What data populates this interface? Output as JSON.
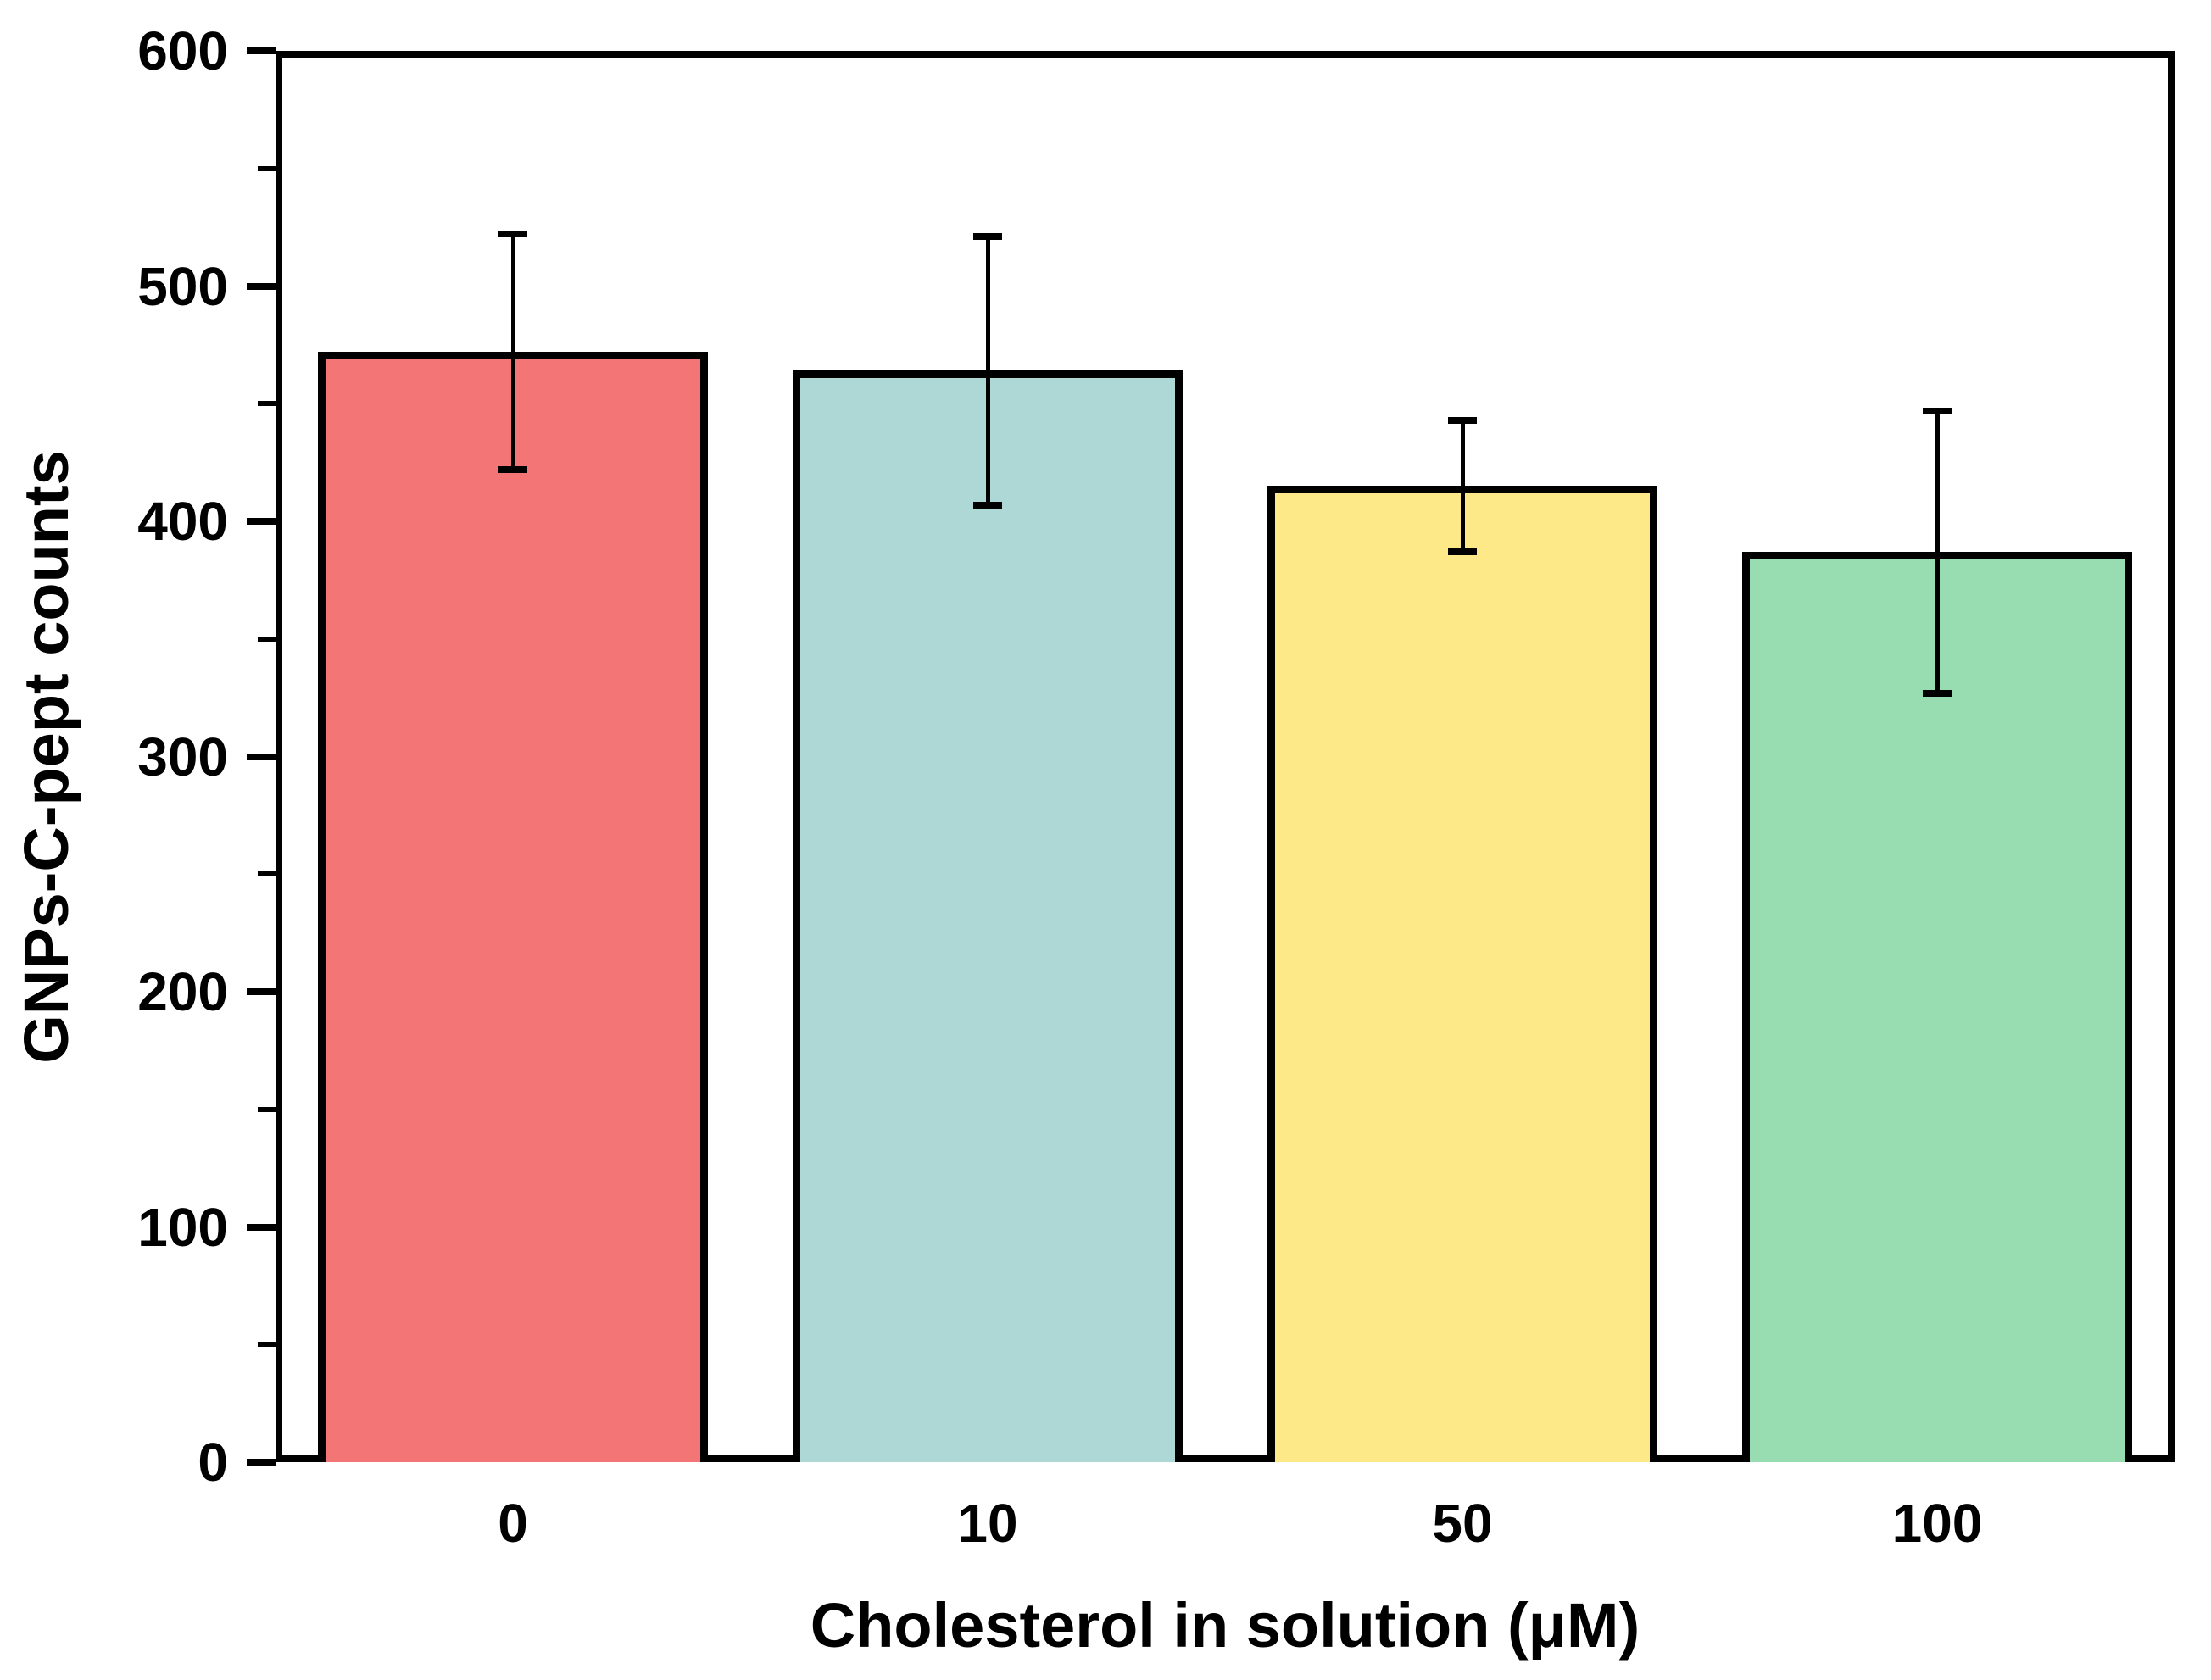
{
  "chart_data": {
    "type": "bar",
    "title": "",
    "categories": [
      "0",
      "10",
      "50",
      "100"
    ],
    "values": [
      472,
      464,
      415,
      387
    ],
    "errors": [
      50,
      57,
      28,
      60
    ],
    "error_ranges": [
      [
        422,
        521
      ],
      [
        407,
        521
      ],
      [
        387,
        443
      ],
      [
        327,
        446
      ]
    ],
    "bar_colors": [
      "#F37576",
      "#AED8D5",
      "#FEE989",
      "#97DDB1"
    ],
    "bar_edge_color": "#000000",
    "xlabel": "Cholesterol in solution (μM)",
    "ylabel": "GNPs-C-pept counts",
    "ylim": [
      0,
      600
    ],
    "yticks": [
      0,
      100,
      200,
      300,
      400,
      500,
      600
    ],
    "minor_yticks": [
      50,
      150,
      250,
      350,
      450,
      550
    ],
    "grid": false,
    "legend": null,
    "frame": "full-box",
    "error_caps": true,
    "background_color": "#FFFFFF"
  }
}
